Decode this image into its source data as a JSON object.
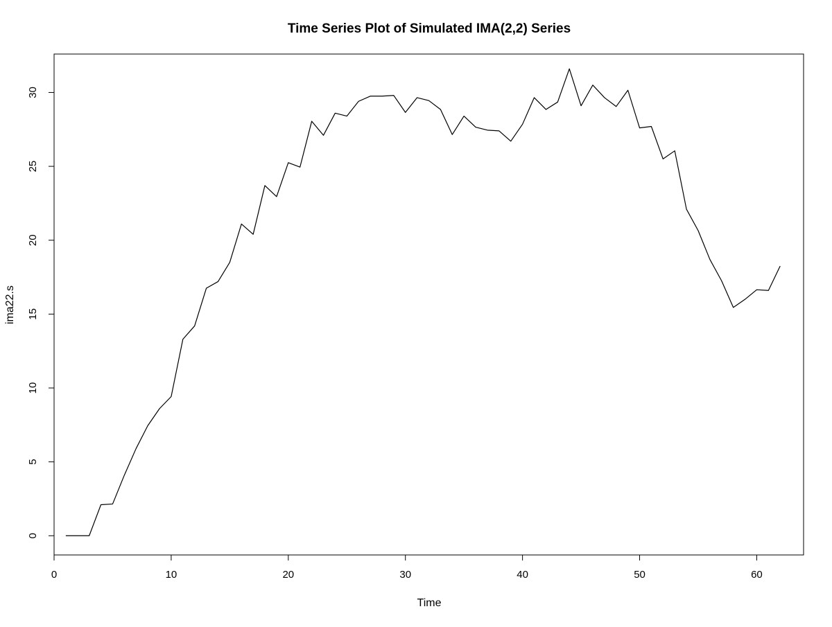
{
  "chart_data": {
    "type": "line",
    "title": "Time Series Plot of Simulated IMA(2,2) Series",
    "xlabel": "Time",
    "ylabel": "ima22.s",
    "xlim": [
      0,
      64
    ],
    "ylim": [
      -1.3,
      32.6
    ],
    "x_ticks": [
      0,
      10,
      20,
      30,
      40,
      50,
      60
    ],
    "y_ticks": [
      0,
      5,
      10,
      15,
      20,
      25,
      30
    ],
    "x_tick_labels": [
      "0",
      "10",
      "20",
      "30",
      "40",
      "50",
      "60"
    ],
    "y_tick_labels": [
      "0",
      "5",
      "10",
      "15",
      "20",
      "25",
      "30"
    ],
    "grid": false,
    "legend": "none",
    "colors": {
      "line": "#000000",
      "axis": "#000000",
      "background": "#ffffff"
    },
    "series": [
      {
        "x": [
          1,
          2,
          3,
          4,
          5,
          6,
          7,
          8,
          9,
          10,
          11,
          12,
          13,
          14,
          15,
          16,
          17,
          18,
          19,
          20,
          21,
          22,
          23,
          24,
          25,
          26,
          27,
          28,
          29,
          30,
          31,
          32,
          33,
          34,
          35,
          36,
          37,
          38,
          39,
          40,
          41,
          42,
          43,
          44,
          45,
          46,
          47,
          48,
          49,
          50,
          51,
          52,
          53,
          54,
          55,
          56,
          57,
          58,
          59,
          60,
          61,
          62
        ],
        "values": [
          0.0,
          0.0,
          0.0,
          2.1,
          2.15,
          4.1,
          5.9,
          7.45,
          8.6,
          9.42,
          13.3,
          14.2,
          16.75,
          17.2,
          18.5,
          21.1,
          20.4,
          23.7,
          22.95,
          25.25,
          24.95,
          28.05,
          27.1,
          28.6,
          28.4,
          29.4,
          29.75,
          29.75,
          29.8,
          28.65,
          29.65,
          29.45,
          28.85,
          27.15,
          28.4,
          27.65,
          27.45,
          27.4,
          26.7,
          27.85,
          29.65,
          28.85,
          29.35,
          31.6,
          29.1,
          30.5,
          29.65,
          29.05,
          30.15,
          27.6,
          27.7,
          25.5,
          26.05,
          22.1,
          20.65,
          18.7,
          17.25,
          15.45,
          16.0,
          16.65,
          16.6,
          18.25
        ]
      }
    ]
  }
}
